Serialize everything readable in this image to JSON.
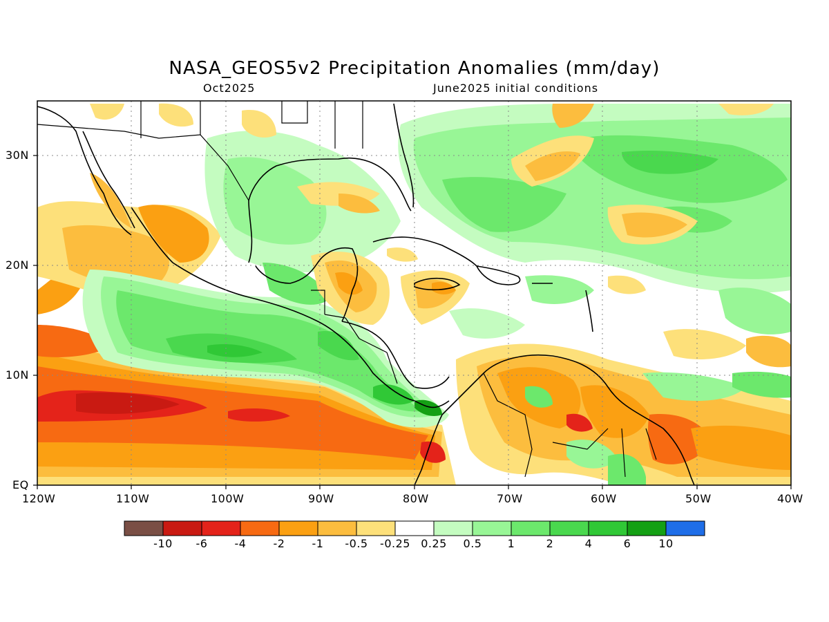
{
  "header": {
    "title": "NASA_GEOS5v2 Precipitation Anomalies (mm/day)",
    "valid_month": "Oct2025",
    "init_conditions": "June2025 initial conditions"
  },
  "map": {
    "lon_range": [
      -120,
      -40
    ],
    "lat_range": [
      0,
      35
    ],
    "x_ticks": [
      "120W",
      "110W",
      "100W",
      "90W",
      "80W",
      "70W",
      "60W",
      "50W",
      "40W"
    ],
    "y_ticks": [
      "EQ",
      "10N",
      "20N",
      "30N"
    ],
    "grid": "dotted",
    "region": "Central America, Caribbean and northern South America"
  },
  "colorbar": {
    "labels": [
      "-10",
      "-6",
      "-4",
      "-2",
      "-1",
      "-0.5",
      "-0.25",
      "0.25",
      "0.5",
      "1",
      "2",
      "4",
      "6",
      "10"
    ],
    "colors": [
      "#7a4f45",
      "#c91a12",
      "#e4231a",
      "#f76a12",
      "#fba012",
      "#fcbd3e",
      "#fde07a",
      "#ffffff",
      "#c4fcc0",
      "#98f696",
      "#6ce86c",
      "#4ad84e",
      "#30c836",
      "#14a014",
      "#1f6ee8"
    ]
  },
  "legend_colors": {
    "dry_strong": "#c91a12",
    "dry": "#f76a12",
    "dry_weak": "#fcbd3e",
    "neutral": "#ffffff",
    "wet_weak": "#98f696",
    "wet": "#4ad84e",
    "wet_strong": "#30c836"
  }
}
